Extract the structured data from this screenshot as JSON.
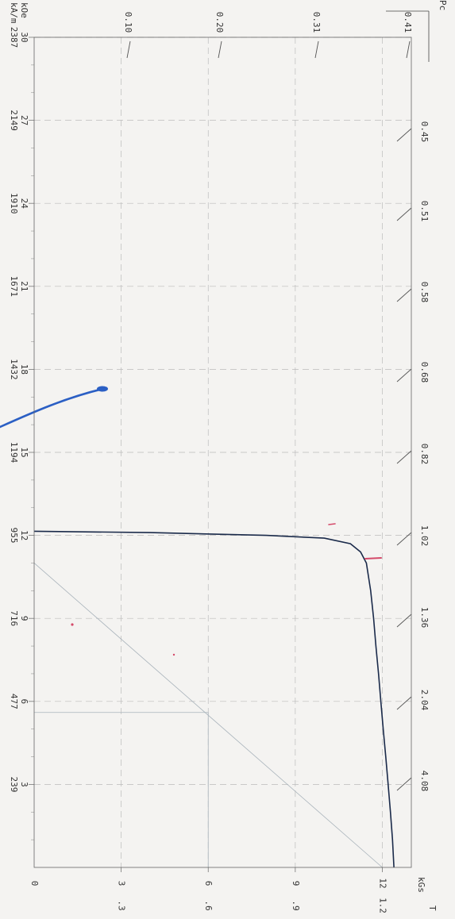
{
  "chart_data": {
    "type": "line",
    "title": "",
    "h_axis": {
      "label_koe": "kOe",
      "label_kam": "kA/m",
      "range_koe": [
        0,
        30
      ],
      "ticks_koe": [
        "30",
        "27",
        "24",
        "21",
        "18",
        "15",
        "12",
        "9",
        "6",
        "3"
      ],
      "ticks_kam": [
        "2387",
        "2149",
        "1910",
        "1671",
        "1432",
        "1194",
        "955",
        "716",
        "477",
        "239"
      ]
    },
    "b_axis": {
      "label_kgs": "kGs",
      "label_t": "T",
      "range_kgs": [
        0,
        13
      ],
      "ticks_kgs": [
        "0",
        "3",
        "6",
        "9",
        "12"
      ],
      "ticks_t": [
        ".3",
        ".6",
        ".9",
        "1.2"
      ]
    },
    "pc_axis": {
      "label": "Pc",
      "ticks": [
        "0.10",
        "0.20",
        "0.31",
        "0.41",
        "0.45",
        "0.51",
        "0.58",
        "0.68",
        "0.82",
        "1.02",
        "1.36",
        "2.04",
        "4.08"
      ]
    },
    "series": [
      {
        "color": "#1a2a4a",
        "points": [
          [
            0,
            12.4
          ],
          [
            1,
            12.35
          ],
          [
            2,
            12.28
          ],
          [
            3,
            12.2
          ],
          [
            4,
            12.12
          ],
          [
            5,
            12.03
          ],
          [
            6,
            11.95
          ],
          [
            7,
            11.87
          ],
          [
            8,
            11.78
          ],
          [
            9,
            11.7
          ],
          [
            10,
            11.6
          ],
          [
            11,
            11.45
          ],
          [
            11.4,
            11.25
          ],
          [
            11.7,
            10.9
          ],
          [
            11.9,
            10.0
          ],
          [
            12.0,
            8.0
          ],
          [
            12.1,
            4.0
          ],
          [
            12.15,
            0
          ]
        ]
      }
    ],
    "reference_lines": [
      {
        "kind": "load_line",
        "from": [
          0,
          12
        ],
        "to": [
          11,
          0
        ]
      },
      {
        "kind": "bh_rectangle",
        "h": 5.6,
        "b": 6.0
      }
    ],
    "handwritten_marks": [
      {
        "kind": "blue_pen_stroke",
        "color": "#2b5fc4"
      },
      {
        "kind": "red_mark",
        "color": "#d44a6a"
      }
    ]
  }
}
